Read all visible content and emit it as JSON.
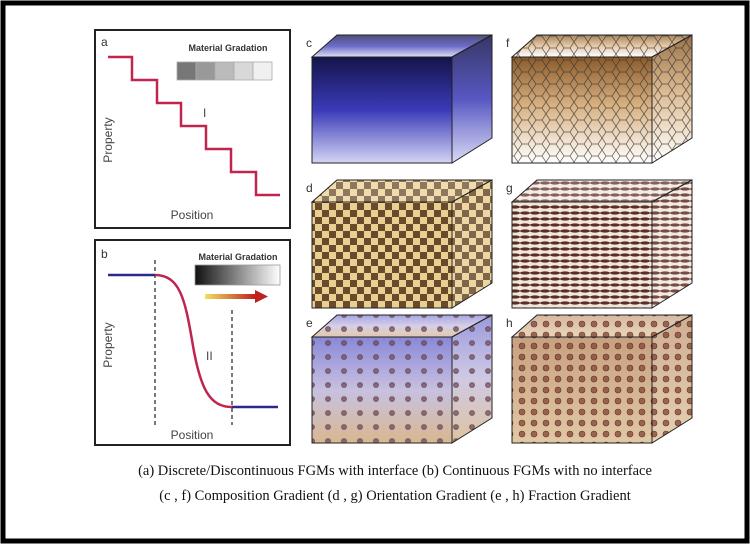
{
  "panels": [
    {
      "letter": "a",
      "legend_title": "Material Gradation",
      "y_label": "Property",
      "x_label": "Position",
      "region": "I"
    },
    {
      "letter": "b",
      "legend_title": "Material Gradation",
      "y_label": "Property",
      "x_label": "Position",
      "region": "II"
    }
  ],
  "cubes": [
    {
      "letter": "c"
    },
    {
      "letter": "f"
    },
    {
      "letter": "d"
    },
    {
      "letter": "g"
    },
    {
      "letter": "e"
    },
    {
      "letter": "h"
    }
  ],
  "caption": [
    "(a)  Discrete/Discontinuous FGMs with interface   (b)  Continuous FGMs with no interface",
    "(c , f) Composition Gradient   (d , g) Orientation Gradient   (e , h) Fraction Gradient"
  ]
}
